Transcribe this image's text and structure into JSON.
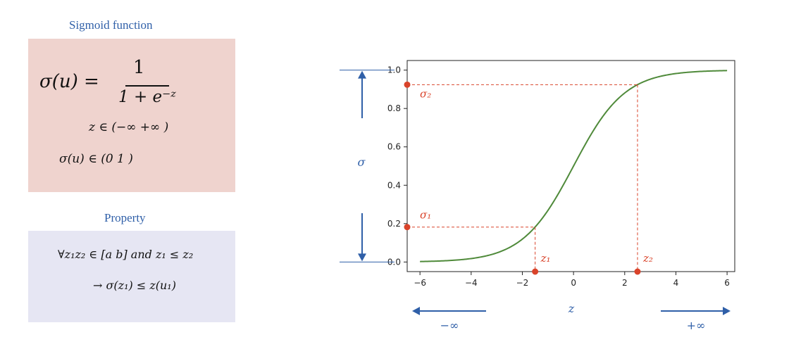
{
  "formula_card": {
    "heading": "Sigmoid function",
    "lhs": "σ(u) =",
    "numerator": "1",
    "denominator": "1 + e⁻ᶻ",
    "z_domain": "z ∈ (−∞   +∞ )",
    "sigma_range": "σ(u) ∈ (0   1 )"
  },
  "property_card": {
    "heading": "Property",
    "line1": "∀z₁z₂ ∈ [a  b] and z₁ ≤ z₂",
    "line2": "→ σ(z₁) ≤ z(u₁)"
  },
  "colors": {
    "curve": "#4f8a3a",
    "annotation": "#d9432a",
    "blue": "#2f5fa8"
  },
  "chart_data": {
    "type": "line",
    "function": "sigmoid",
    "x_range": [
      -6,
      6
    ],
    "xlim": [
      -6.5,
      6.3
    ],
    "ylim": [
      -0.05,
      1.05
    ],
    "xticks": [
      -6,
      -4,
      -2,
      0,
      2,
      4,
      6
    ],
    "yticks": [
      0.0,
      0.2,
      0.4,
      0.6,
      0.8,
      1.0
    ],
    "xtick_labels": [
      "−6",
      "−4",
      "−2",
      "0",
      "2",
      "4",
      "6"
    ],
    "ytick_labels": [
      "0.0",
      "0.2",
      "0.4",
      "0.6",
      "0.8",
      "1.0"
    ],
    "grid": false,
    "ylabel": "σ",
    "xlabel": "z",
    "annotations": [
      {
        "label_y": "σ₁",
        "label_x": "z₁",
        "x": -1.5,
        "y": 0.182
      },
      {
        "label_y": "σ₂",
        "label_x": "z₂",
        "x": 2.5,
        "y": 0.924
      }
    ],
    "left_arrow_label": "−∞",
    "right_arrow_label": "+∞"
  }
}
